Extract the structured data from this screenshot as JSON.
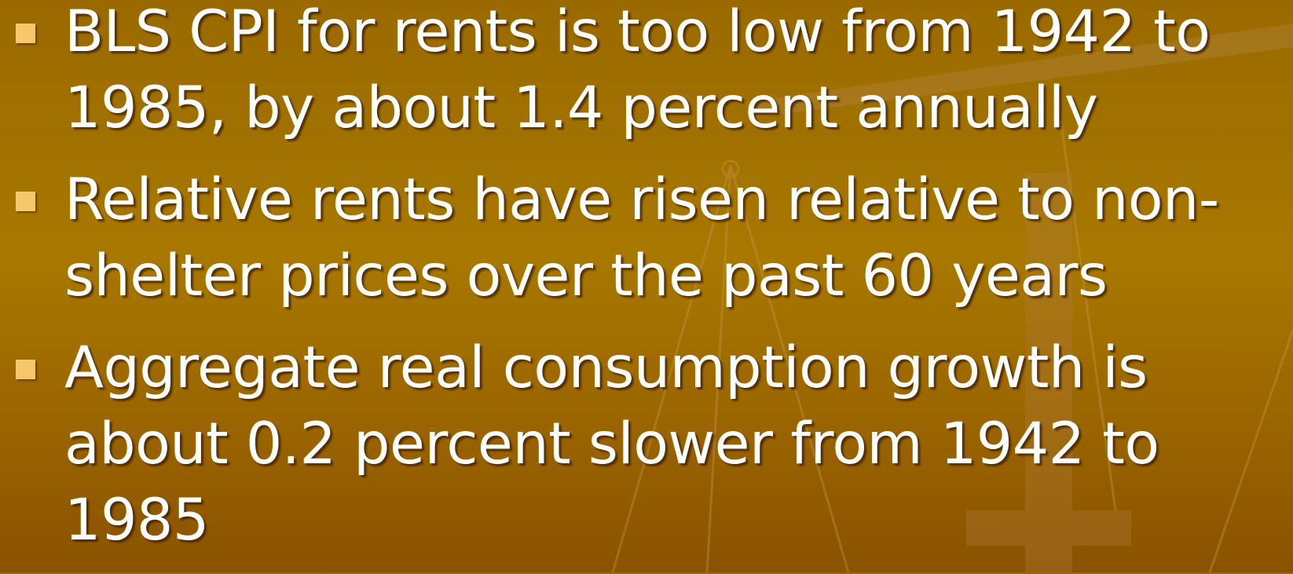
{
  "bullets": [
    "BLS CPI for rents is too low from 1942 to 1985, by about 1.4 percent annually",
    "Relative rents have risen relative to non-shelter prices over the past 60 years",
    "Aggregate real consumption growth is about 0.2 percent slower from 1942 to 1985"
  ]
}
